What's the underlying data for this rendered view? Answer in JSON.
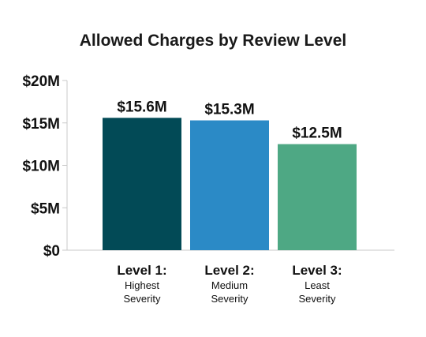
{
  "chart_data": {
    "type": "bar",
    "title": "Allowed Charges by Review Level",
    "xlabel": "",
    "ylabel": "",
    "ylim": [
      0,
      20
    ],
    "y_ticks": [
      0,
      5,
      10,
      15,
      20
    ],
    "y_tick_labels": [
      "$0",
      "$5M",
      "$10M",
      "$15M",
      "$20M"
    ],
    "grid": false,
    "legend": "none",
    "categories": [
      {
        "title": "Level 1:",
        "subtitle": [
          "Highest",
          "Severity"
        ]
      },
      {
        "title": "Level 2:",
        "subtitle": [
          "Medium",
          "Severity"
        ]
      },
      {
        "title": "Level 3:",
        "subtitle": [
          "Least",
          "Severity"
        ]
      }
    ],
    "values": [
      15.6,
      15.3,
      12.5
    ],
    "data_labels": [
      "$15.6M",
      "$15.3M",
      "$12.5M"
    ],
    "unit": "$M",
    "colors": [
      "#024a56",
      "#2b8ac6",
      "#4ea884"
    ]
  }
}
